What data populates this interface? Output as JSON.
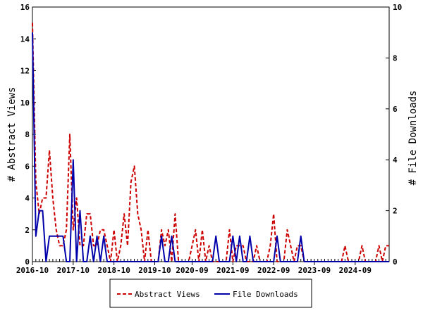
{
  "colors": {
    "views": "#cc0000",
    "downloads": "#0000aa",
    "axis": "#000000",
    "background": "#ffffff"
  },
  "chart_data": {
    "type": "line",
    "ylabel": "# Abstract Views",
    "y2label": "# File Downloads",
    "x_tick_labels": [
      "2016-10",
      "2017-10",
      "2018-10",
      "2019-10",
      "2020-09",
      "2021-09",
      "2022-09",
      "2023-09",
      "2024-09"
    ],
    "x_tick_month_index": [
      0,
      12,
      24,
      36,
      47,
      59,
      71,
      83,
      95
    ],
    "n_months": 106,
    "ylim": [
      0,
      16
    ],
    "yticks": [
      "0",
      "2",
      "4",
      "6",
      "8",
      "10",
      "12",
      "14",
      "16"
    ],
    "y2lim": [
      0,
      10
    ],
    "y2ticks": [
      "0",
      "2",
      "4",
      "6",
      "8",
      "10"
    ],
    "grid": false,
    "legend_position": "bottom",
    "series": [
      {
        "name": "Abstract Views",
        "axis": "left",
        "style": "dashed",
        "values": [
          15,
          5,
          3,
          4,
          4,
          7,
          4,
          2,
          1,
          1,
          2,
          8,
          2,
          4,
          1,
          1,
          3,
          3,
          1,
          1,
          2,
          2,
          1,
          0,
          2,
          0,
          1,
          3,
          1,
          5,
          6,
          3,
          2,
          0,
          2,
          0,
          0,
          0,
          2,
          1,
          2,
          0,
          3,
          0,
          0,
          0,
          0,
          1,
          2,
          0,
          2,
          0,
          1,
          0,
          0,
          0,
          0,
          0,
          2,
          0,
          1,
          1,
          1,
          0,
          0,
          0,
          1,
          0,
          0,
          0,
          1,
          3,
          0,
          0,
          0,
          2,
          1,
          0,
          1,
          1,
          0,
          0,
          0,
          0,
          0,
          0,
          0,
          0,
          0,
          0,
          0,
          0,
          1,
          0,
          0,
          0,
          0,
          1,
          0,
          0,
          0,
          0,
          1,
          0,
          1,
          1
        ]
      },
      {
        "name": "File Downloads",
        "axis": "right",
        "style": "solid",
        "values": [
          9,
          1,
          2,
          2,
          0,
          1,
          1,
          1,
          1,
          1,
          0,
          0,
          4,
          0,
          2,
          0,
          0,
          1,
          0,
          1,
          0,
          1,
          0,
          0,
          0,
          0,
          0,
          0,
          0,
          0,
          0,
          0,
          0,
          0,
          0,
          0,
          0,
          0,
          1,
          0,
          0,
          1,
          0,
          0,
          0,
          0,
          0,
          0,
          0,
          0,
          0,
          0,
          0,
          0,
          1,
          0,
          0,
          0,
          0,
          1,
          0,
          1,
          0,
          0,
          1,
          0,
          0,
          0,
          0,
          0,
          0,
          0,
          1,
          0,
          0,
          0,
          0,
          0,
          0,
          1,
          0,
          0,
          0,
          0,
          0,
          0,
          0,
          0,
          0,
          0,
          0,
          0,
          0,
          0,
          0,
          0,
          0,
          0,
          0,
          0,
          0,
          0,
          0,
          0,
          0,
          0
        ]
      }
    ]
  }
}
